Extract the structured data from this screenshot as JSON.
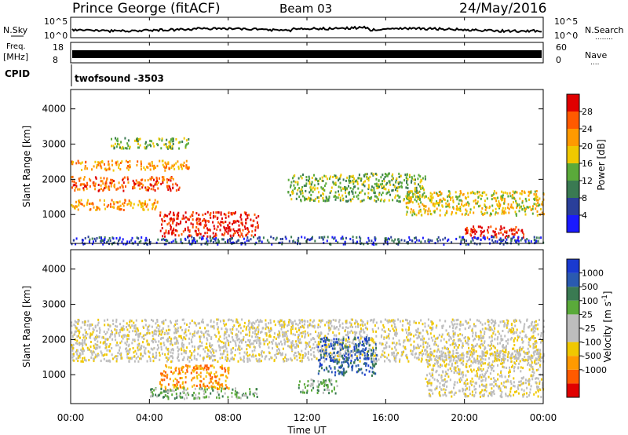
{
  "header": {
    "station": "Prince George (fitACF)",
    "beam": "Beam 03",
    "date": "24/May/2016"
  },
  "strips": {
    "nsky_label": "N.Sky",
    "nsearch_label": "N.Search",
    "nsearch_dots": "........",
    "left_ticks_top": [
      "10^5",
      "10^0"
    ],
    "right_ticks_top": [
      "10^5",
      "10^0"
    ],
    "freq_label_1": "Freq.",
    "freq_label_2": "[MHz]",
    "freq_ticks": [
      "18",
      "8"
    ],
    "nave_label": "Nave",
    "nave_dots": "....",
    "nave_ticks": [
      "60",
      "0"
    ],
    "cpid_label": "CPID",
    "cpid_value": "twofsound -3503"
  },
  "time_axis": {
    "ticks": [
      "00:00",
      "04:00",
      "08:00",
      "12:00",
      "16:00",
      "20:00",
      "00:00"
    ],
    "label": "Time UT"
  },
  "colors": {
    "power": [
      "#1a1aff",
      "#2a3f9a",
      "#3a7a52",
      "#5aaa3a",
      "#f0c800",
      "#ff9a00",
      "#ff5a00",
      "#e00000"
    ],
    "velocity": [
      "#e00000",
      "#ff5a00",
      "#ff9a00",
      "#f0c800",
      "#bdbdbd",
      "#bdbdbd",
      "#5aaa3a",
      "#3a7a52",
      "#2a5ab0",
      "#1a3ad0"
    ]
  },
  "chart_data": [
    {
      "type": "heatmap",
      "name": "power",
      "ylabel": "Slant Range [km]",
      "xlabel": "",
      "x_range_hours": [
        0,
        24
      ],
      "y_ticks": [
        1000,
        2000,
        3000,
        4000
      ],
      "ylim": [
        180,
        4550
      ],
      "colorbar_label": "Power [dB]",
      "colorbar_ticks": [
        4,
        8,
        12,
        16,
        20,
        24,
        28
      ],
      "regions": [
        {
          "t0": 0.0,
          "t1": 6.0,
          "r0": 2280,
          "r1": 2560,
          "level": 5
        },
        {
          "t0": 0.0,
          "t1": 5.5,
          "r0": 1700,
          "r1": 2100,
          "level": 6
        },
        {
          "t0": 0.0,
          "t1": 4.5,
          "r0": 1150,
          "r1": 1450,
          "level": 5
        },
        {
          "t0": 4.5,
          "t1": 9.5,
          "r0": 400,
          "r1": 1100,
          "level": 7
        },
        {
          "t0": 2.0,
          "t1": 6.0,
          "r0": 2900,
          "r1": 3200,
          "level": 3
        },
        {
          "t0": 11.0,
          "t1": 18.0,
          "r0": 1400,
          "r1": 2200,
          "level": 3
        },
        {
          "t0": 17.0,
          "t1": 24.0,
          "r0": 1000,
          "r1": 1700,
          "level": 4
        },
        {
          "t0": 20.0,
          "t1": 23.0,
          "r0": 350,
          "r1": 700,
          "level": 7
        },
        {
          "t0": 0.0,
          "t1": 24.0,
          "r0": 180,
          "r1": 400,
          "level": 1
        }
      ]
    },
    {
      "type": "heatmap",
      "name": "velocity",
      "ylabel": "Slant Range [km]",
      "xlabel": "Time UT",
      "x_range_hours": [
        0,
        24
      ],
      "y_ticks": [
        1000,
        2000,
        3000,
        4000
      ],
      "ylim": [
        180,
        4550
      ],
      "colorbar_label": "Velocity [m s-1]",
      "colorbar_ticks": [
        1000,
        500,
        100,
        25,
        -25,
        -100,
        -500,
        -1000
      ],
      "regions": [
        {
          "t0": 0.0,
          "t1": 24.0,
          "r0": 1400,
          "r1": 2600,
          "level": 4
        },
        {
          "t0": 4.5,
          "t1": 8.0,
          "r0": 600,
          "r1": 1300,
          "level": 2
        },
        {
          "t0": 4.0,
          "t1": 9.5,
          "r0": 350,
          "r1": 650,
          "level": 6
        },
        {
          "t0": 12.5,
          "t1": 15.5,
          "r0": 1000,
          "r1": 2100,
          "level": 8
        },
        {
          "t0": 11.5,
          "t1": 13.5,
          "r0": 500,
          "r1": 900,
          "level": 6
        },
        {
          "t0": 18.0,
          "t1": 24.0,
          "r0": 400,
          "r1": 1700,
          "level": 4
        }
      ]
    }
  ]
}
